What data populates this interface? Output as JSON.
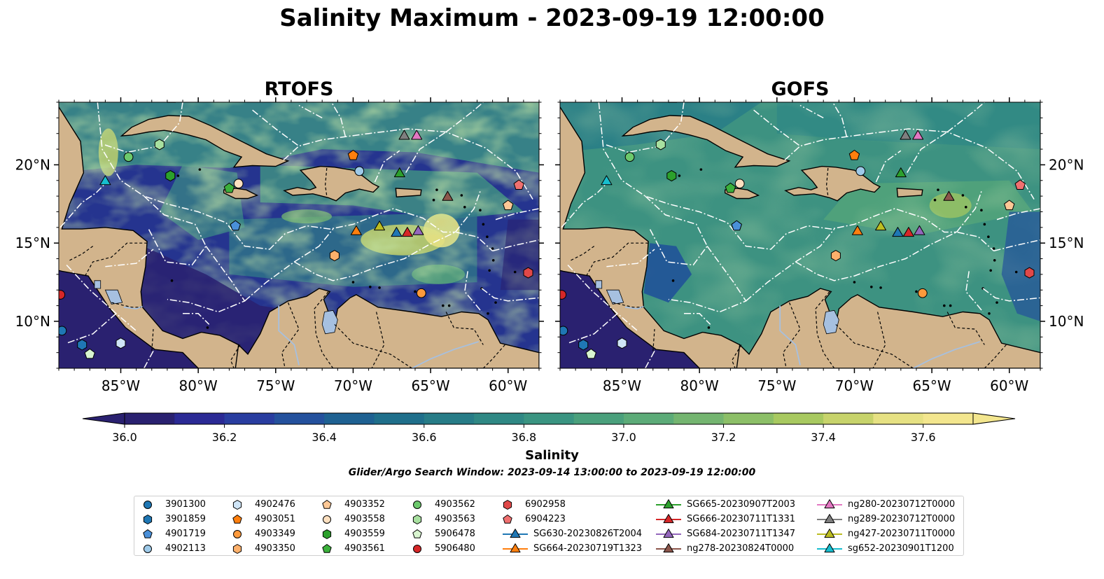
{
  "title": "Salinity Maximum - 2023-09-19 12:00:00",
  "panels": [
    {
      "name": "RTOFS",
      "palette": "rtofs"
    },
    {
      "name": "GOFS",
      "palette": "gofs"
    }
  ],
  "axes": {
    "lon_ticks": [
      {
        "value": -85,
        "label": "85°W"
      },
      {
        "value": -80,
        "label": "80°W"
      },
      {
        "value": -75,
        "label": "75°W"
      },
      {
        "value": -70,
        "label": "70°W"
      },
      {
        "value": -65,
        "label": "65°W"
      },
      {
        "value": -60,
        "label": "60°W"
      }
    ],
    "lat_ticks": [
      {
        "value": 20,
        "label": "20°N"
      },
      {
        "value": 15,
        "label": "15°N"
      },
      {
        "value": 10,
        "label": "10°N"
      }
    ],
    "lon_range": [
      -89,
      -58
    ],
    "lat_range": [
      7,
      24
    ]
  },
  "colorbar": {
    "label": "Salinity",
    "min": 36.0,
    "max": 37.6,
    "step": 0.1,
    "ticks": [
      "36.0",
      "36.2",
      "36.4",
      "36.6",
      "36.8",
      "37.0",
      "37.2",
      "37.4",
      "37.6"
    ],
    "colors": [
      "#2a2170",
      "#2b2a95",
      "#293da0",
      "#24519d",
      "#1e6192",
      "#1f6f8b",
      "#277c87",
      "#2f8884",
      "#3a9481",
      "#4aa07c",
      "#5cab78",
      "#74b570",
      "#8cbf67",
      "#a8c960",
      "#c7d36b",
      "#e6e183",
      "#f3e68e"
    ]
  },
  "search_window": "Glider/Argo Search Window: 2023-09-14 13:00:00 to 2023-09-19 12:00:00",
  "colors": {
    "land": "#d2b48c",
    "lake": "#a6c0e0",
    "ocean_deep": "#2a2170",
    "boundary": "#ffffff"
  },
  "legend": [
    {
      "label": "3901300",
      "marker": "circle",
      "color": "#1f77b4"
    },
    {
      "label": "3901859",
      "marker": "hexagon",
      "color": "#1f77b4"
    },
    {
      "label": "4901719",
      "marker": "pentagon",
      "color": "#4a90d9"
    },
    {
      "label": "4902113",
      "marker": "circle",
      "color": "#9ecae9"
    },
    {
      "label": "4902476",
      "marker": "hexagon",
      "color": "#cfe5f7"
    },
    {
      "label": "4903051",
      "marker": "pentagon",
      "color": "#ff7f0e"
    },
    {
      "label": "4903349",
      "marker": "circle",
      "color": "#fd9a3c"
    },
    {
      "label": "4903350",
      "marker": "hexagon",
      "color": "#fdb06b"
    },
    {
      "label": "4903352",
      "marker": "pentagon",
      "color": "#fdc896"
    },
    {
      "label": "4903558",
      "marker": "circle",
      "color": "#fde0c0"
    },
    {
      "label": "4903559",
      "marker": "hexagon",
      "color": "#2ca02c"
    },
    {
      "label": "4903561",
      "marker": "pentagon",
      "color": "#3bb03b"
    },
    {
      "label": "4903562",
      "marker": "circle",
      "color": "#6cc96c"
    },
    {
      "label": "4903563",
      "marker": "hexagon",
      "color": "#a8e0a0"
    },
    {
      "label": "5906478",
      "marker": "pentagon",
      "color": "#d9f5d0"
    },
    {
      "label": "5906480",
      "marker": "circle",
      "color": "#d62728"
    },
    {
      "label": "6902958",
      "marker": "hexagon",
      "color": "#e04848"
    },
    {
      "label": "6904223",
      "marker": "pentagon",
      "color": "#f07070"
    },
    {
      "label": "SG630-20230826T2004",
      "marker": "triangle",
      "color": "#1f77b4"
    },
    {
      "label": "SG664-20230719T1323",
      "marker": "triangle",
      "color": "#ff7f0e"
    },
    {
      "label": "SG665-20230907T2003",
      "marker": "triangle",
      "color": "#2ca02c"
    },
    {
      "label": "SG666-20230711T1331",
      "marker": "triangle",
      "color": "#d62728"
    },
    {
      "label": "SG684-20230711T1347",
      "marker": "triangle",
      "color": "#9467bd"
    },
    {
      "label": "ng278-20230824T0000",
      "marker": "triangle",
      "color": "#8c564b"
    },
    {
      "label": "ng280-20230712T0000",
      "marker": "triangle",
      "color": "#e377c2"
    },
    {
      "label": "ng289-20230712T0000",
      "marker": "triangle",
      "color": "#7f7f7f"
    },
    {
      "label": "ng427-20230711T0000",
      "marker": "triangle",
      "color": "#bcbd22"
    },
    {
      "label": "sg652-20230901T1200",
      "marker": "triangle",
      "color": "#17becf"
    }
  ],
  "observations": [
    {
      "id": "3901300",
      "lon": -88.8,
      "lat": 9.4
    },
    {
      "id": "3901859",
      "lon": -87.5,
      "lat": 8.5
    },
    {
      "id": "4901719",
      "lon": -77.6,
      "lat": 16.1
    },
    {
      "id": "4902113",
      "lon": -69.6,
      "lat": 19.6
    },
    {
      "id": "4902476",
      "lon": -85.0,
      "lat": 8.6
    },
    {
      "id": "4903051",
      "lon": -70.0,
      "lat": 20.6
    },
    {
      "id": "4903349",
      "lon": -65.6,
      "lat": 11.8
    },
    {
      "id": "4903350",
      "lon": -71.2,
      "lat": 14.2
    },
    {
      "id": "4903352",
      "lon": -60.0,
      "lat": 17.4
    },
    {
      "id": "4903558",
      "lon": -77.4,
      "lat": 18.8
    },
    {
      "id": "4903559",
      "lon": -81.8,
      "lat": 19.3
    },
    {
      "id": "4903561",
      "lon": -78.0,
      "lat": 18.5
    },
    {
      "id": "4903562",
      "lon": -84.5,
      "lat": 20.5
    },
    {
      "id": "4903563",
      "lon": -82.5,
      "lat": 21.3
    },
    {
      "id": "5906478",
      "lon": -87.0,
      "lat": 7.9
    },
    {
      "id": "5906480",
      "lon": -88.9,
      "lat": 11.7
    },
    {
      "id": "6902958",
      "lon": -58.7,
      "lat": 13.1
    },
    {
      "id": "6904223",
      "lon": -59.3,
      "lat": 18.7
    },
    {
      "id": "SG630-20230826T2004",
      "lon": -67.2,
      "lat": 15.7
    },
    {
      "id": "SG664-20230719T1323",
      "lon": -69.8,
      "lat": 15.8
    },
    {
      "id": "SG665-20230907T2003",
      "lon": -67.0,
      "lat": 19.5
    },
    {
      "id": "SG666-20230711T1331",
      "lon": -66.5,
      "lat": 15.7
    },
    {
      "id": "SG684-20230711T1347",
      "lon": -65.8,
      "lat": 15.8
    },
    {
      "id": "ng278-20230824T0000",
      "lon": -63.9,
      "lat": 18.0
    },
    {
      "id": "ng280-20230712T0000",
      "lon": -65.9,
      "lat": 21.9
    },
    {
      "id": "ng289-20230712T0000",
      "lon": -66.7,
      "lat": 21.9
    },
    {
      "id": "ng427-20230711T0000",
      "lon": -68.3,
      "lat": 16.1
    },
    {
      "id": "sg652-20230901T1200",
      "lon": -86.0,
      "lat": 19.0
    }
  ]
}
